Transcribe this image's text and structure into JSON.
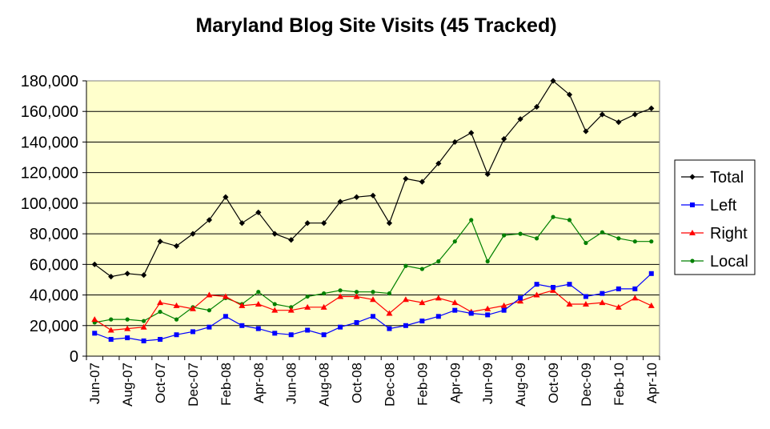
{
  "chart_data": {
    "type": "line",
    "title": "Maryland Blog Site Visits (45 Tracked)",
    "xlabel": "",
    "ylabel": "",
    "ylim": [
      0,
      180000
    ],
    "yticks": [
      0,
      20000,
      40000,
      60000,
      80000,
      100000,
      120000,
      140000,
      160000,
      180000
    ],
    "ytick_labels": [
      "0",
      "20,000",
      "40,000",
      "60,000",
      "80,000",
      "100,000",
      "120,000",
      "140,000",
      "160,000",
      "180,000"
    ],
    "x": [
      "Jun-07",
      "Jul-07",
      "Aug-07",
      "Sep-07",
      "Oct-07",
      "Nov-07",
      "Dec-07",
      "Jan-08",
      "Feb-08",
      "Mar-08",
      "Apr-08",
      "May-08",
      "Jun-08",
      "Jul-08",
      "Aug-08",
      "Sep-08",
      "Oct-08",
      "Nov-08",
      "Dec-08",
      "Jan-09",
      "Feb-09",
      "Mar-09",
      "Apr-09",
      "May-09",
      "Jun-09",
      "Jul-09",
      "Aug-09",
      "Sep-09",
      "Oct-09",
      "Nov-09",
      "Dec-09",
      "Jan-10",
      "Feb-10",
      "Mar-10",
      "Apr-10"
    ],
    "xtick_labels": [
      "Jun-07",
      "Aug-07",
      "Oct-07",
      "Dec-07",
      "Feb-08",
      "Apr-08",
      "Jun-08",
      "Aug-08",
      "Oct-08",
      "Dec-08",
      "Feb-09",
      "Apr-09",
      "Jun-09",
      "Aug-09",
      "Oct-09",
      "Dec-09",
      "Feb-10",
      "Apr-10"
    ],
    "grid": "horizontal",
    "legend_position": "right",
    "plot_background": "#ffffcc",
    "series": [
      {
        "name": "Total",
        "color": "#000000",
        "marker": "diamond",
        "values": [
          60000,
          52000,
          54000,
          53000,
          75000,
          72000,
          80000,
          89000,
          104000,
          87000,
          94000,
          80000,
          76000,
          87000,
          87000,
          101000,
          104000,
          105000,
          87000,
          116000,
          114000,
          126000,
          140000,
          146000,
          119000,
          142000,
          155000,
          163000,
          180000,
          171000,
          147000,
          158000,
          153000,
          158000,
          162000
        ]
      },
      {
        "name": "Left",
        "color": "#0000ff",
        "marker": "square",
        "values": [
          15000,
          11000,
          12000,
          10000,
          11000,
          14000,
          16000,
          19000,
          26000,
          20000,
          18000,
          15000,
          14000,
          17000,
          14000,
          19000,
          22000,
          26000,
          18000,
          20000,
          23000,
          26000,
          30000,
          28000,
          27000,
          30000,
          38000,
          47000,
          45000,
          47000,
          39000,
          41000,
          44000,
          44000,
          54000
        ]
      },
      {
        "name": "Right",
        "color": "#ff0000",
        "marker": "triangle",
        "values": [
          24000,
          17000,
          18000,
          19000,
          35000,
          33000,
          31000,
          40000,
          39000,
          33000,
          34000,
          30000,
          30000,
          32000,
          32000,
          39000,
          39000,
          37000,
          28000,
          37000,
          35000,
          38000,
          35000,
          29000,
          31000,
          33000,
          36000,
          40000,
          43000,
          34000,
          34000,
          35000,
          32000,
          38000,
          33000
        ]
      },
      {
        "name": "Local",
        "color": "#008000",
        "marker": "circle",
        "values": [
          22000,
          24000,
          24000,
          23000,
          29000,
          24000,
          32000,
          30000,
          38000,
          34000,
          42000,
          34000,
          32000,
          39000,
          41000,
          43000,
          42000,
          42000,
          41000,
          59000,
          57000,
          62000,
          75000,
          89000,
          62000,
          79000,
          80000,
          77000,
          91000,
          89000,
          74000,
          81000,
          77000,
          75000,
          75000
        ]
      }
    ]
  }
}
